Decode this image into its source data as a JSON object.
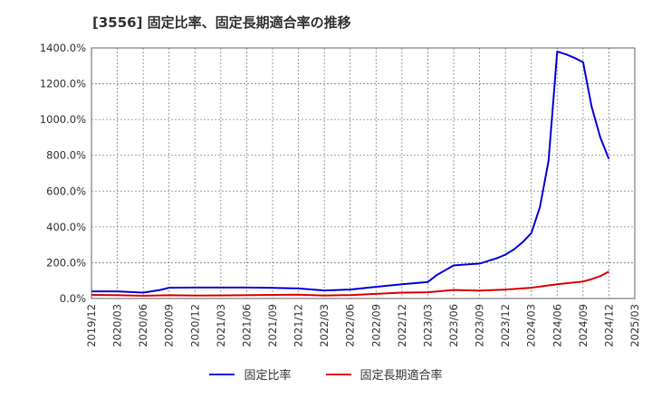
{
  "title": "[3556]  固定比率、固定長期適合率の推移",
  "chart_data": {
    "type": "line",
    "ylim": [
      0,
      1400
    ],
    "yticks": [
      "0.0%",
      "200.0%",
      "400.0%",
      "600.0%",
      "800.0%",
      "1000.0%",
      "1200.0%",
      "1400.0%"
    ],
    "xlim": [
      "2019/12",
      "2025/03"
    ],
    "xticks": [
      "2019/12",
      "2020/03",
      "2020/06",
      "2020/09",
      "2020/12",
      "2021/03",
      "2021/06",
      "2021/09",
      "2021/12",
      "2022/03",
      "2022/06",
      "2022/09",
      "2022/12",
      "2023/03",
      "2023/06",
      "2023/09",
      "2023/12",
      "2024/03",
      "2024/06",
      "2024/09",
      "2024/12",
      "2025/03"
    ],
    "grid": true,
    "legend_position": "bottom",
    "series": [
      {
        "name": "固定比率",
        "color": "#0000dd",
        "x": [
          "2019/12",
          "2020/03",
          "2020/06",
          "2020/08",
          "2020/09",
          "2020/12",
          "2021/03",
          "2021/06",
          "2021/09",
          "2021/12",
          "2022/03",
          "2022/06",
          "2022/09",
          "2022/12",
          "2023/03",
          "2023/04",
          "2023/06",
          "2023/09",
          "2023/10",
          "2023/11",
          "2023/12",
          "2024/01",
          "2024/02",
          "2024/03",
          "2024/04",
          "2024/05",
          "2024/06",
          "2024/07",
          "2024/08",
          "2024/09",
          "2024/10",
          "2024/11",
          "2024/12"
        ],
        "values": [
          40,
          40,
          33,
          48,
          60,
          61,
          61,
          61,
          59,
          56,
          45,
          50,
          65,
          80,
          92,
          130,
          185,
          195,
          210,
          225,
          245,
          275,
          315,
          365,
          510,
          770,
          1380,
          1365,
          1345,
          1320,
          1070,
          900,
          780
        ]
      },
      {
        "name": "固定長期適合率",
        "color": "#dd0000",
        "x": [
          "2019/12",
          "2020/03",
          "2020/06",
          "2020/09",
          "2020/12",
          "2021/03",
          "2021/06",
          "2021/09",
          "2021/12",
          "2022/03",
          "2022/06",
          "2022/09",
          "2022/12",
          "2023/03",
          "2023/06",
          "2023/09",
          "2023/12",
          "2024/03",
          "2024/06",
          "2024/09",
          "2024/10",
          "2024/11",
          "2024/12"
        ],
        "values": [
          20,
          18,
          15,
          18,
          16,
          17,
          18,
          20,
          21,
          16,
          19,
          26,
          33,
          35,
          48,
          44,
          50,
          60,
          80,
          95,
          108,
          125,
          150
        ]
      }
    ]
  }
}
